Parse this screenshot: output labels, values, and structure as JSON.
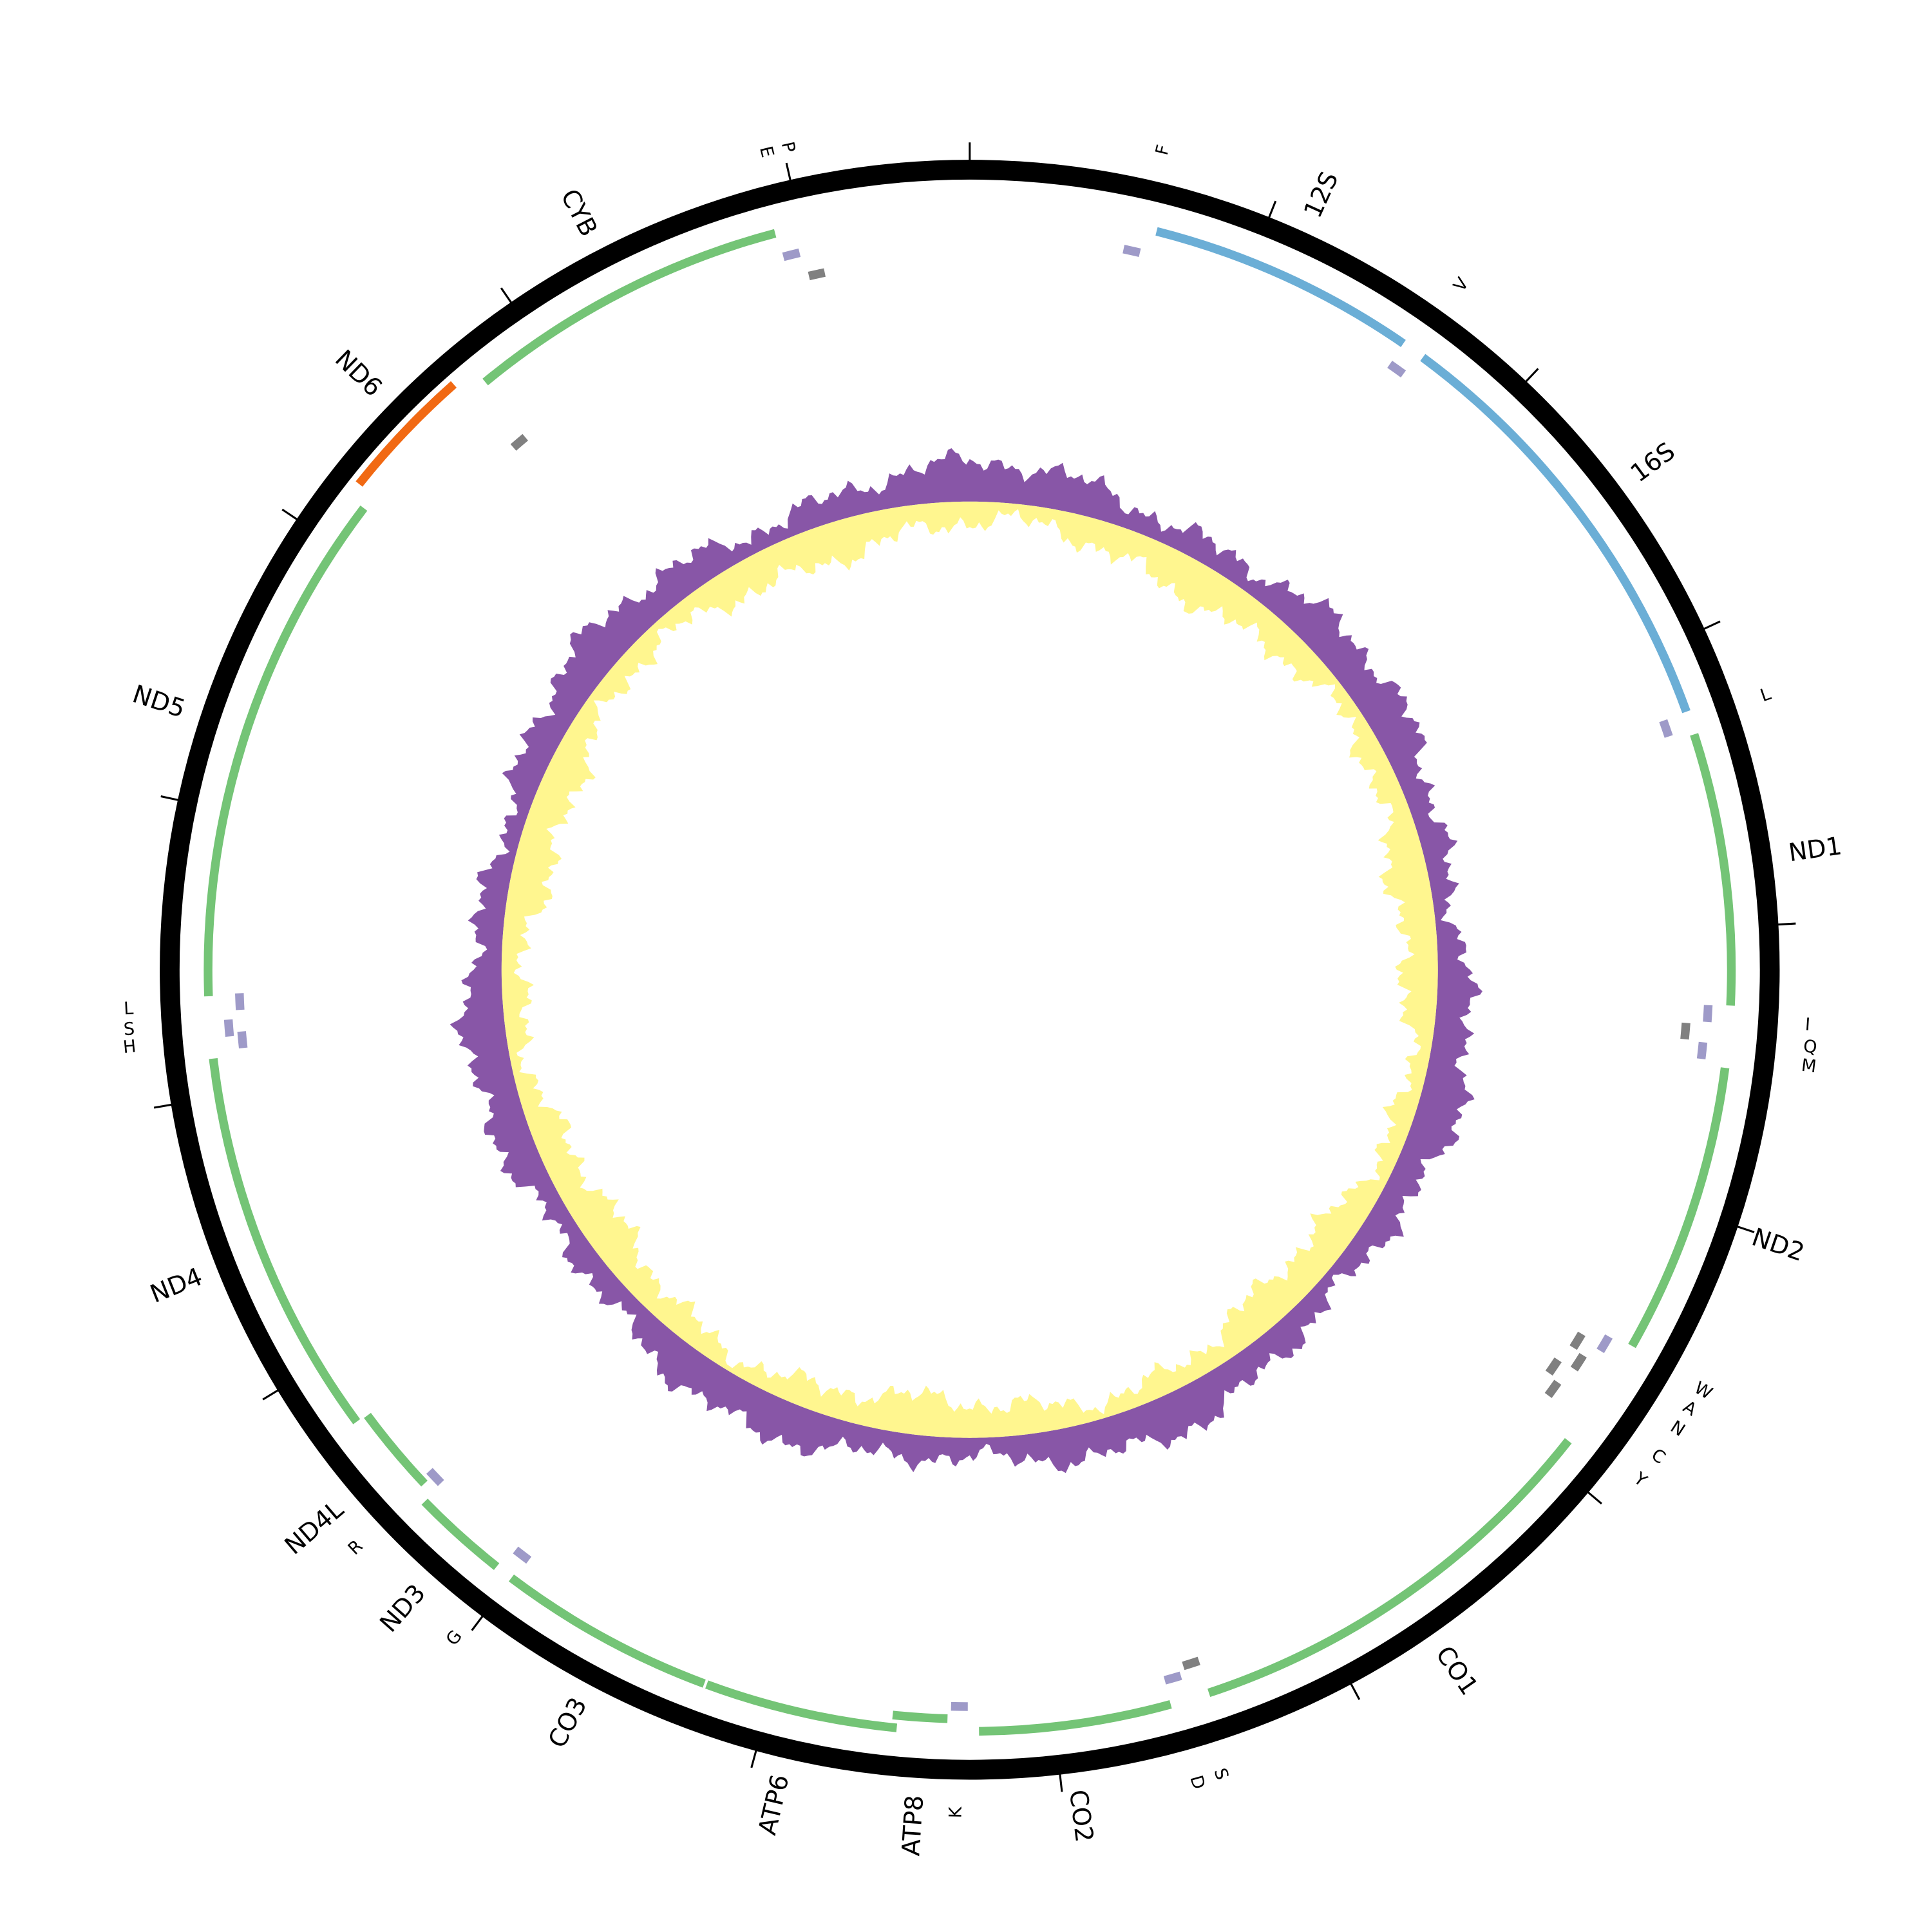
{
  "labels": [
    "E",
    "P",
    "F",
    "12S",
    "V",
    "16S",
    "L",
    "ND1",
    "I",
    "Q",
    "M",
    "ND2",
    "W",
    "A",
    "N",
    "C",
    "Y",
    "CO1",
    "S",
    "D",
    "CO2",
    "K",
    "ATP8",
    "ATP6",
    "CO3",
    "G",
    "ND3",
    "R",
    "ND4L",
    "ND4",
    "H",
    "S",
    "L",
    "ND5",
    "ND6",
    "CYB"
  ]
}
